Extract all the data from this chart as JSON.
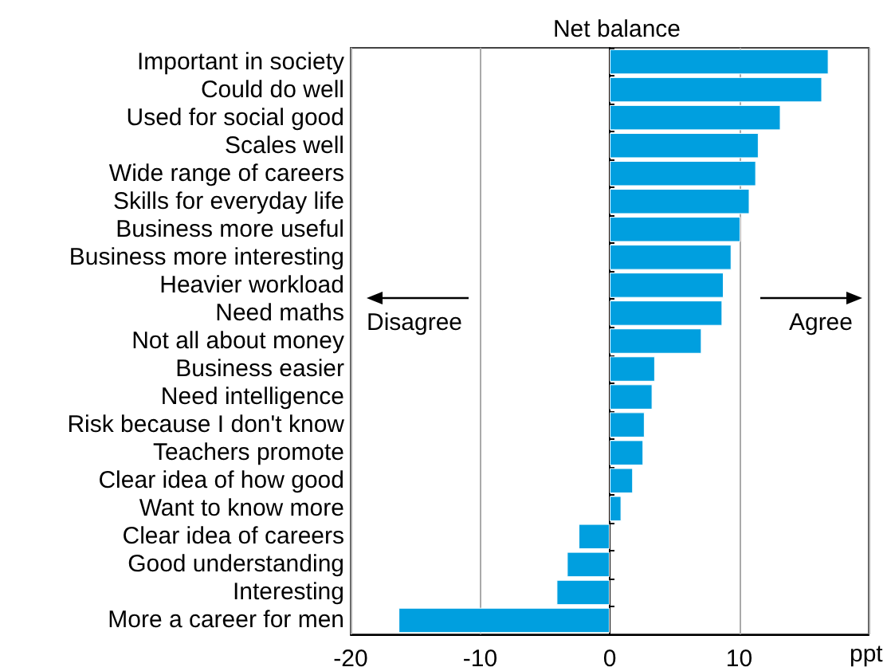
{
  "chart_data": {
    "type": "bar",
    "orientation": "horizontal",
    "subtitle": "Net balance",
    "xlabel": "ppt",
    "categories": [
      "Important in society",
      "Could do well",
      "Used for social good",
      "Scales well",
      "Wide range of careers",
      "Skills for everyday life",
      "Business more useful",
      "Business more interesting",
      "Heavier workload",
      "Need maths",
      "Not all about money",
      "Business easier",
      "Need intelligence",
      "Risk because I don't know",
      "Teachers promote",
      "Clear idea of how good",
      "Want to know more",
      "Clear idea of careers",
      "Good understanding",
      "Interesting",
      "More a career for men"
    ],
    "values": [
      16.9,
      16.4,
      13.2,
      11.5,
      11.3,
      10.8,
      10.1,
      9.4,
      8.8,
      8.7,
      7.1,
      3.5,
      3.3,
      2.7,
      2.6,
      1.8,
      0.9,
      -2.4,
      -3.3,
      -4.1,
      -16.3
    ],
    "color": "#009fdf",
    "xlim": [
      -20,
      20
    ],
    "xticks": [
      -20,
      -10,
      0,
      10,
      {
        "value": 20,
        "label": null
      }
    ],
    "grid": "x",
    "annotations": [
      "Disagree",
      "Agree"
    ]
  }
}
